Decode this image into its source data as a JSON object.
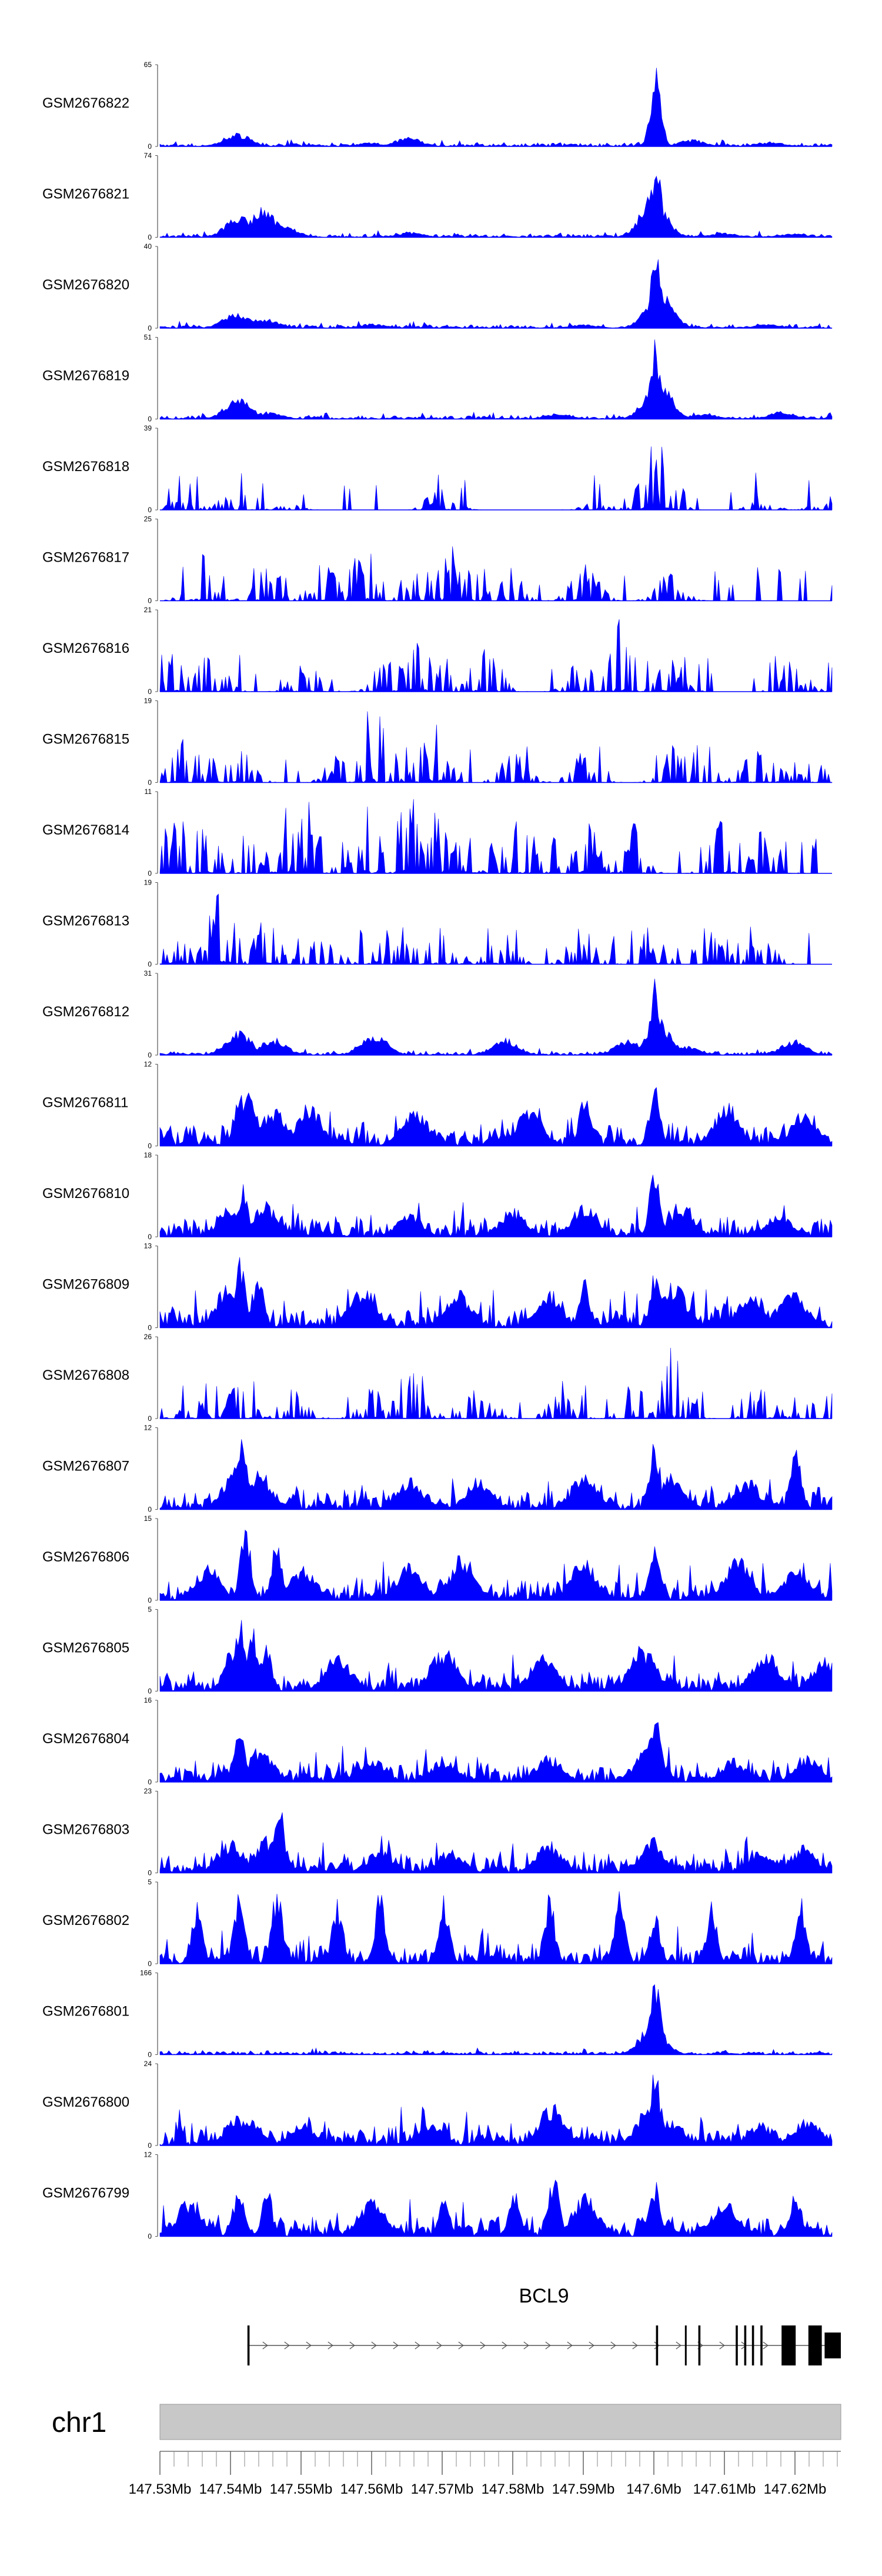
{
  "colors": {
    "signal": "#0000ff",
    "axis": "#555555",
    "gene": "#000000",
    "ideogram": "#c8c8c8",
    "ideogram_border": "#9a9a9a"
  },
  "chart_data": {
    "type": "area",
    "title": "",
    "xlabel": "",
    "ylabel": "",
    "chromosome": "chr1",
    "xlim": [
      147.53,
      147.6265
    ],
    "x_unit": "Mb",
    "x_ticks": [
      147.53,
      147.54,
      147.55,
      147.56,
      147.57,
      147.58,
      147.59,
      147.6,
      147.61,
      147.62
    ],
    "x_tick_labels": [
      "147.53Mb",
      "147.54Mb",
      "147.55Mb",
      "147.56Mb",
      "147.57Mb",
      "147.58Mb",
      "147.59Mb",
      "147.6Mb",
      "147.61Mb",
      "147.62Mb"
    ],
    "minor_tick_step": 0.002,
    "tracks": [
      {
        "name": "GSM2676822",
        "ymax": 65,
        "style": "dense",
        "peaks": [
          [
            147.5652,
            0.12
          ],
          [
            147.5409,
            0.18
          ],
          [
            147.6001,
            0.62
          ],
          [
            147.6003,
            1.0
          ],
          [
            147.5598,
            0.05
          ],
          [
            147.6054,
            0.09
          ],
          [
            147.6167,
            0.06
          ]
        ]
      },
      {
        "name": "GSM2676821",
        "ymax": 74,
        "style": "dense",
        "peaks": [
          [
            147.5412,
            0.32
          ],
          [
            147.5446,
            0.38
          ],
          [
            147.5478,
            0.15
          ],
          [
            147.5999,
            0.55
          ],
          [
            147.6003,
            1.0
          ],
          [
            147.5654,
            0.07
          ],
          [
            147.6101,
            0.06
          ],
          [
            147.6197,
            0.05
          ]
        ]
      },
      {
        "name": "GSM2676820",
        "ymax": 40,
        "style": "dense",
        "peaks": [
          [
            147.5408,
            0.2
          ],
          [
            147.5421,
            0.16
          ],
          [
            147.5452,
            0.12
          ],
          [
            147.6003,
            1.0
          ],
          [
            147.6007,
            0.5
          ],
          [
            147.5602,
            0.06
          ],
          [
            147.5901,
            0.05
          ],
          [
            147.6161,
            0.05
          ]
        ]
      },
      {
        "name": "GSM2676819",
        "ymax": 51,
        "style": "dense",
        "peaks": [
          [
            147.5411,
            0.28
          ],
          [
            147.5455,
            0.1
          ],
          [
            147.6002,
            1.0
          ],
          [
            147.6006,
            0.55
          ],
          [
            147.5867,
            0.08
          ],
          [
            147.6071,
            0.07
          ],
          [
            147.6182,
            0.1
          ]
        ]
      },
      {
        "name": "GSM2676818",
        "ymax": 39,
        "style": "sparse",
        "peaks": [
          [
            147.5332,
            0.15
          ],
          [
            147.5391,
            0.2
          ],
          [
            147.5478,
            0.1
          ],
          [
            147.5699,
            0.3
          ],
          [
            147.6002,
            1.0
          ],
          [
            147.6006,
            0.8
          ],
          [
            147.5921,
            0.12
          ],
          [
            147.6153,
            0.12
          ],
          [
            147.6241,
            0.1
          ]
        ]
      },
      {
        "name": "GSM2676817",
        "ymax": 25,
        "style": "sparse",
        "peaks": [
          [
            147.5358,
            0.62
          ],
          [
            147.5452,
            0.45
          ],
          [
            147.5532,
            0.5
          ],
          [
            147.5593,
            0.8
          ],
          [
            147.5658,
            0.4
          ],
          [
            147.5699,
            0.98
          ],
          [
            147.5741,
            0.4
          ],
          [
            147.5902,
            0.48
          ],
          [
            147.6023,
            0.35
          ],
          [
            147.5792,
            0.3
          ]
        ]
      },
      {
        "name": "GSM2676816",
        "ymax": 21,
        "style": "sparse",
        "peaks": [
          [
            147.5321,
            0.5
          ],
          [
            147.5374,
            0.55
          ],
          [
            147.5508,
            0.38
          ],
          [
            147.5623,
            0.45
          ],
          [
            147.5664,
            0.8
          ],
          [
            147.5689,
            0.6
          ],
          [
            147.5761,
            0.65
          ],
          [
            147.5898,
            0.42
          ],
          [
            147.5951,
            1.0
          ],
          [
            147.6022,
            0.5
          ],
          [
            147.6198,
            0.45
          ]
        ]
      },
      {
        "name": "GSM2676815",
        "ymax": 19,
        "style": "sparse",
        "peaks": [
          [
            147.5334,
            0.55
          ],
          [
            147.5378,
            0.35
          ],
          [
            147.5413,
            0.42
          ],
          [
            147.5555,
            0.38
          ],
          [
            147.5601,
            0.98
          ],
          [
            147.5684,
            1.0
          ],
          [
            147.5801,
            0.38
          ],
          [
            147.5901,
            0.42
          ],
          [
            147.6031,
            0.5
          ],
          [
            147.6138,
            0.5
          ],
          [
            147.6178,
            0.35
          ],
          [
            147.6228,
            0.33
          ]
        ]
      },
      {
        "name": "GSM2676814",
        "ymax": 11,
        "style": "sparse",
        "peaks": [
          [
            147.5322,
            0.8
          ],
          [
            147.5364,
            0.75
          ],
          [
            147.5479,
            0.95
          ],
          [
            147.5508,
            0.9
          ],
          [
            147.5601,
            0.95
          ],
          [
            147.5653,
            1.0
          ],
          [
            147.5701,
            0.95
          ],
          [
            147.5748,
            0.85
          ],
          [
            147.5812,
            0.75
          ],
          [
            147.5902,
            0.7
          ],
          [
            147.5961,
            0.8
          ],
          [
            147.6101,
            0.75
          ],
          [
            147.6159,
            0.6
          ]
        ]
      },
      {
        "name": "GSM2676813",
        "ymax": 19,
        "style": "sparse",
        "peaks": [
          [
            147.5321,
            0.58
          ],
          [
            147.5387,
            0.95
          ],
          [
            147.5452,
            0.6
          ],
          [
            147.5533,
            0.5
          ],
          [
            147.5642,
            0.48
          ],
          [
            147.5701,
            0.6
          ],
          [
            147.5785,
            0.4
          ],
          [
            147.5901,
            0.58
          ],
          [
            147.6002,
            0.65
          ],
          [
            147.6077,
            0.48
          ],
          [
            147.6152,
            0.36
          ]
        ]
      },
      {
        "name": "GSM2676812",
        "ymax": 31,
        "style": "dense",
        "peaks": [
          [
            147.5412,
            0.32
          ],
          [
            147.5461,
            0.22
          ],
          [
            147.5603,
            0.3
          ],
          [
            147.5789,
            0.22
          ],
          [
            147.5962,
            0.2
          ],
          [
            147.6002,
            1.0
          ],
          [
            147.6006,
            0.45
          ],
          [
            147.6048,
            0.12
          ],
          [
            147.6198,
            0.2
          ]
        ]
      },
      {
        "name": "GSM2676811",
        "ymax": 12,
        "style": "dense",
        "peaks": [
          [
            147.5412,
            0.72
          ],
          [
            147.5428,
            0.95
          ],
          [
            147.5462,
            0.5
          ],
          [
            147.5512,
            0.55
          ],
          [
            147.5661,
            0.5
          ],
          [
            147.5823,
            0.48
          ],
          [
            147.5902,
            0.72
          ],
          [
            147.6001,
            0.88
          ],
          [
            147.6104,
            0.55
          ],
          [
            147.6214,
            0.5
          ]
        ]
      },
      {
        "name": "GSM2676810",
        "ymax": 18,
        "style": "dense",
        "peaks": [
          [
            147.5401,
            0.4
          ],
          [
            147.5418,
            0.7
          ],
          [
            147.5448,
            0.45
          ],
          [
            147.5654,
            0.3
          ],
          [
            147.5801,
            0.38
          ],
          [
            147.5902,
            0.45
          ],
          [
            147.6002,
            1.0
          ],
          [
            147.6038,
            0.42
          ],
          [
            147.6178,
            0.3
          ]
        ]
      },
      {
        "name": "GSM2676809",
        "ymax": 13,
        "style": "dense",
        "peaks": [
          [
            147.5398,
            0.6
          ],
          [
            147.5413,
            0.98
          ],
          [
            147.5439,
            0.75
          ],
          [
            147.5588,
            0.55
          ],
          [
            147.5724,
            0.48
          ],
          [
            147.5851,
            0.5
          ],
          [
            147.5902,
            0.62
          ],
          [
            147.6002,
            0.72
          ],
          [
            147.6028,
            0.58
          ],
          [
            147.6139,
            0.5
          ],
          [
            147.6196,
            0.52
          ]
        ]
      },
      {
        "name": "GSM2676808",
        "ymax": 26,
        "style": "sparse",
        "peaks": [
          [
            147.5352,
            0.3
          ],
          [
            147.5412,
            0.45
          ],
          [
            147.5491,
            0.38
          ],
          [
            147.5604,
            0.4
          ],
          [
            147.5658,
            0.78
          ],
          [
            147.5754,
            0.4
          ],
          [
            147.5868,
            0.3
          ],
          [
            147.5978,
            0.48
          ],
          [
            147.6027,
            1.0
          ],
          [
            147.6154,
            0.38
          ],
          [
            147.6215,
            0.3
          ]
        ]
      },
      {
        "name": "GSM2676807",
        "ymax": 12,
        "style": "dense",
        "peaks": [
          [
            147.5409,
            0.58
          ],
          [
            147.5418,
            0.98
          ],
          [
            147.5441,
            0.5
          ],
          [
            147.5654,
            0.4
          ],
          [
            147.5752,
            0.42
          ],
          [
            147.5901,
            0.48
          ],
          [
            147.6001,
            0.92
          ],
          [
            147.6022,
            0.48
          ],
          [
            147.6201,
            0.85
          ],
          [
            147.6131,
            0.42
          ]
        ]
      },
      {
        "name": "GSM2676806",
        "ymax": 15,
        "style": "dense",
        "peaks": [
          [
            147.5368,
            0.45
          ],
          [
            147.5421,
            1.0
          ],
          [
            147.5466,
            0.85
          ],
          [
            147.5502,
            0.45
          ],
          [
            147.5655,
            0.5
          ],
          [
            147.5729,
            0.6
          ],
          [
            147.5901,
            0.55
          ],
          [
            147.6001,
            0.85
          ],
          [
            147.6119,
            0.55
          ],
          [
            147.6201,
            0.45
          ]
        ]
      },
      {
        "name": "GSM2676805",
        "ymax": 5,
        "style": "dense",
        "peaks": [
          [
            147.5398,
            0.62
          ],
          [
            147.5412,
            1.0
          ],
          [
            147.5432,
            0.82
          ],
          [
            147.5451,
            0.68
          ],
          [
            147.5553,
            0.5
          ],
          [
            147.5702,
            0.58
          ],
          [
            147.5843,
            0.52
          ],
          [
            147.5985,
            0.6
          ],
          [
            147.6158,
            0.55
          ],
          [
            147.6242,
            0.45
          ]
        ]
      },
      {
        "name": "GSM2676804",
        "ymax": 16,
        "style": "dense",
        "peaks": [
          [
            147.5412,
            0.75
          ],
          [
            147.5442,
            0.45
          ],
          [
            147.5602,
            0.3
          ],
          [
            147.5702,
            0.3
          ],
          [
            147.5851,
            0.35
          ],
          [
            147.5994,
            0.55
          ],
          [
            147.6002,
            0.98
          ],
          [
            147.6113,
            0.3
          ],
          [
            147.6218,
            0.35
          ]
        ]
      },
      {
        "name": "GSM2676803",
        "ymax": 23,
        "style": "dense",
        "peaks": [
          [
            147.5401,
            0.42
          ],
          [
            147.5452,
            0.48
          ],
          [
            147.5468,
            1.0
          ],
          [
            147.5612,
            0.3
          ],
          [
            147.5712,
            0.3
          ],
          [
            147.5852,
            0.4
          ],
          [
            147.5998,
            0.45
          ],
          [
            147.6152,
            0.3
          ],
          [
            147.6212,
            0.35
          ]
        ]
      },
      {
        "name": "GSM2676802",
        "ymax": 5,
        "style": "dense",
        "peaks": [
          [
            147.5352,
            0.82
          ],
          [
            147.5412,
            0.95
          ],
          [
            147.5466,
            1.0
          ],
          [
            147.5552,
            0.85
          ],
          [
            147.5612,
            0.92
          ],
          [
            147.5703,
            0.92
          ],
          [
            147.5852,
            0.9
          ],
          [
            147.5952,
            0.92
          ],
          [
            147.6002,
            0.72
          ],
          [
            147.6082,
            0.82
          ],
          [
            147.6208,
            0.9
          ]
        ]
      },
      {
        "name": "GSM2676801",
        "ymax": 166,
        "style": "dense",
        "peaks": [
          [
            147.5998,
            0.4
          ],
          [
            147.6002,
            0.98
          ],
          [
            147.6005,
            0.72
          ],
          [
            147.5555,
            0.02
          ],
          [
            147.6101,
            0.02
          ]
        ]
      },
      {
        "name": "GSM2676800",
        "ymax": 24,
        "style": "dense",
        "peaks": [
          [
            147.5412,
            0.4
          ],
          [
            147.5428,
            0.32
          ],
          [
            147.5502,
            0.3
          ],
          [
            147.5681,
            0.3
          ],
          [
            147.5856,
            0.55
          ],
          [
            147.5996,
            0.6
          ],
          [
            147.6002,
            1.0
          ],
          [
            147.6022,
            0.38
          ],
          [
            147.6152,
            0.3
          ],
          [
            147.6218,
            0.38
          ]
        ]
      },
      {
        "name": "GSM2676799",
        "ymax": 12,
        "style": "dense",
        "peaks": [
          [
            147.5342,
            0.5
          ],
          [
            147.5412,
            0.72
          ],
          [
            147.5452,
            0.62
          ],
          [
            147.5602,
            0.48
          ],
          [
            147.5703,
            0.62
          ],
          [
            147.5802,
            0.62
          ],
          [
            147.5858,
            0.88
          ],
          [
            147.5902,
            0.55
          ],
          [
            147.6001,
            0.72
          ],
          [
            147.6101,
            0.5
          ],
          [
            147.6201,
            0.62
          ]
        ]
      }
    ],
    "gene": {
      "name": "BCL9",
      "strand": "+",
      "start": 147.5424,
      "end": 147.6265,
      "exons": [
        [
          147.5424,
          147.5427
        ],
        [
          147.6003,
          147.6006
        ],
        [
          147.6044,
          147.6046
        ],
        [
          147.6063,
          147.6066
        ],
        [
          147.6116,
          147.6119
        ],
        [
          147.6128,
          147.6131
        ],
        [
          147.6139,
          147.6142
        ],
        [
          147.6151,
          147.6154
        ],
        [
          147.6181,
          147.6201
        ],
        [
          147.6219,
          147.6238
        ],
        [
          147.6242,
          147.6265
        ]
      ]
    }
  }
}
